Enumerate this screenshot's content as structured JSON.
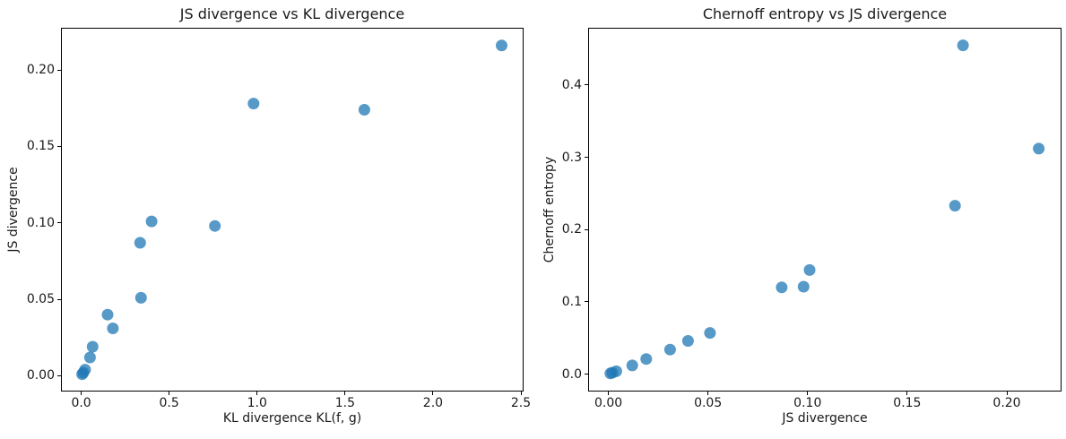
{
  "figure": {
    "background_color": "#ffffff",
    "spine_color": "#000000",
    "text_color": "#1a1a1a"
  },
  "chart_data": [
    {
      "type": "scatter",
      "title": "JS divergence vs KL divergence",
      "xlabel": "KL divergence KL(f, g)",
      "ylabel": "JS divergence",
      "xlim": [
        -0.11,
        2.51
      ],
      "ylim": [
        -0.0097,
        0.227
      ],
      "xticks": {
        "values": [
          0.0,
          0.5,
          1.0,
          1.5,
          2.0,
          2.5
        ],
        "labels": [
          "0.0",
          "0.5",
          "1.0",
          "1.5",
          "2.0",
          "2.5"
        ]
      },
      "yticks": {
        "values": [
          0.0,
          0.05,
          0.1,
          0.15,
          0.2
        ],
        "labels": [
          "0.00",
          "0.05",
          "0.10",
          "0.15",
          "0.20"
        ]
      },
      "grid": false,
      "legend": "none",
      "marker": {
        "shape": "circle",
        "radius": 6.5,
        "color": "#1f77b4",
        "opacity": 0.75
      },
      "points": [
        [
          0.005,
          0.001
        ],
        [
          0.012,
          0.002
        ],
        [
          0.022,
          0.004
        ],
        [
          0.05,
          0.012
        ],
        [
          0.065,
          0.019
        ],
        [
          0.15,
          0.04
        ],
        [
          0.18,
          0.031
        ],
        [
          0.335,
          0.087
        ],
        [
          0.34,
          0.051
        ],
        [
          0.4,
          0.101
        ],
        [
          0.76,
          0.098
        ],
        [
          0.98,
          0.178
        ],
        [
          1.61,
          0.174
        ],
        [
          2.39,
          0.216
        ]
      ]
    },
    {
      "type": "scatter",
      "title": "Chernoff entropy vs JS divergence",
      "xlabel": "JS divergence",
      "ylabel": "Chernoff entropy",
      "xlim": [
        -0.0097,
        0.227
      ],
      "ylim": [
        -0.0228,
        0.478
      ],
      "xticks": {
        "values": [
          0.0,
          0.05,
          0.1,
          0.15,
          0.2
        ],
        "labels": [
          "0.00",
          "0.05",
          "0.10",
          "0.15",
          "0.20"
        ]
      },
      "yticks": {
        "values": [
          0.0,
          0.1,
          0.2,
          0.3,
          0.4
        ],
        "labels": [
          "0.0",
          "0.1",
          "0.2",
          "0.3",
          "0.4"
        ]
      },
      "grid": false,
      "legend": "none",
      "marker": {
        "shape": "circle",
        "radius": 6.5,
        "color": "#1f77b4",
        "opacity": 0.75
      },
      "points": [
        [
          0.001,
          0.001
        ],
        [
          0.002,
          0.002
        ],
        [
          0.004,
          0.004
        ],
        [
          0.012,
          0.012
        ],
        [
          0.019,
          0.021
        ],
        [
          0.04,
          0.046
        ],
        [
          0.031,
          0.034
        ],
        [
          0.087,
          0.12
        ],
        [
          0.051,
          0.057
        ],
        [
          0.101,
          0.144
        ],
        [
          0.098,
          0.121
        ],
        [
          0.178,
          0.455
        ],
        [
          0.174,
          0.233
        ],
        [
          0.216,
          0.312
        ]
      ]
    }
  ]
}
